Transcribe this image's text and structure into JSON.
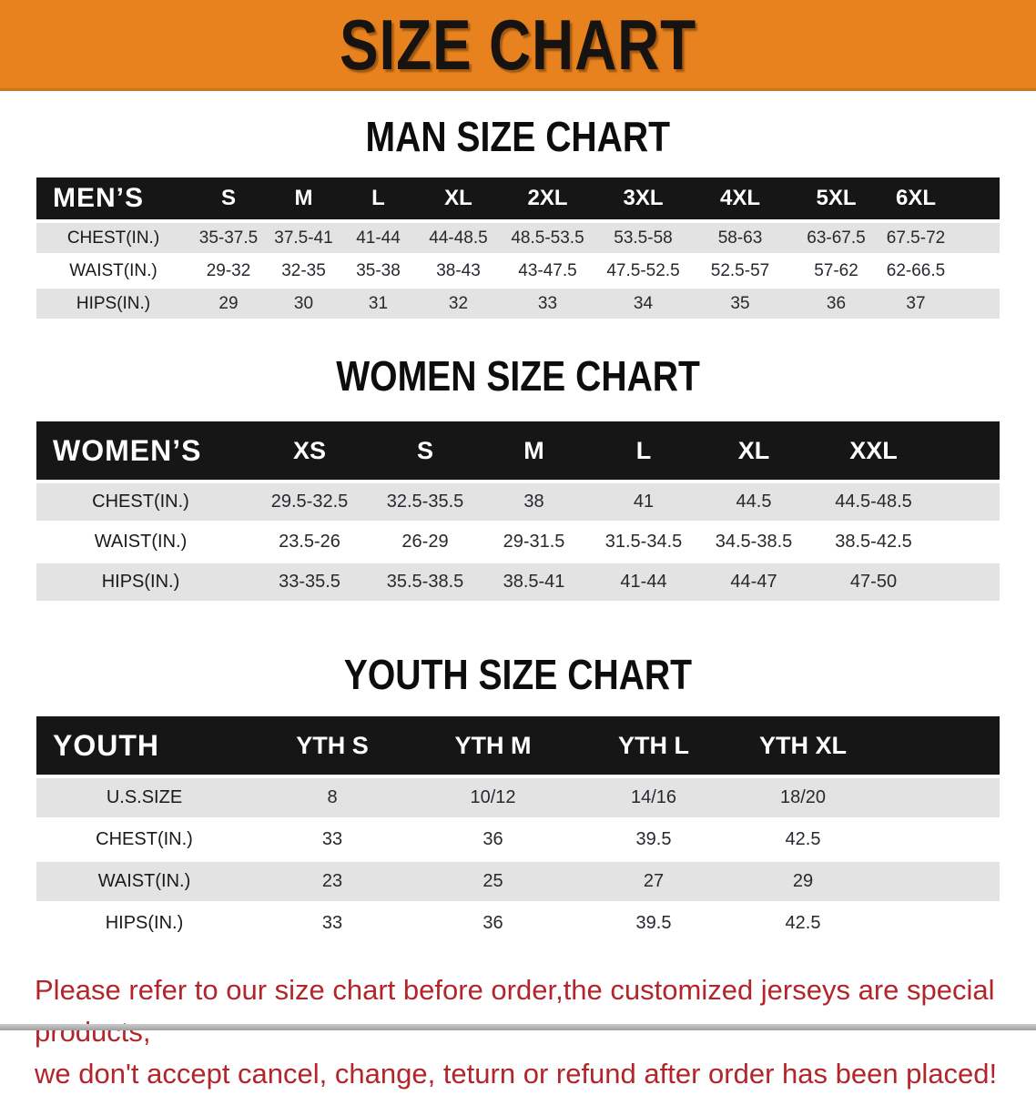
{
  "banner": {
    "title": "SIZE CHART"
  },
  "colors": {
    "banner_orange": "#E8821E",
    "header_bar": "#161616",
    "row_grey": "#E3E3E3",
    "note_red": "#B2262B"
  },
  "sections": {
    "men": {
      "heading": "MAN SIZE CHART",
      "table": {
        "corner_label": "MEN’S",
        "columns": [
          "S",
          "M",
          "L",
          "XL",
          "2XL",
          "3XL",
          "4XL",
          "5XL",
          "6XL"
        ],
        "rows": [
          {
            "label": "CHEST(IN.)",
            "values": [
              "35-37.5",
              "37.5-41",
              "41-44",
              "44-48.5",
              "48.5-53.5",
              "53.5-58",
              "58-63",
              "63-67.5",
              "67.5-72"
            ]
          },
          {
            "label": "WAIST(IN.)",
            "values": [
              "29-32",
              "32-35",
              "35-38",
              "38-43",
              "43-47.5",
              "47.5-52.5",
              "52.5-57",
              "57-62",
              "62-66.5"
            ]
          },
          {
            "label": "HIPS(IN.)",
            "values": [
              "29",
              "30",
              "31",
              "32",
              "33",
              "34",
              "35",
              "36",
              "37"
            ]
          }
        ]
      }
    },
    "women": {
      "heading": "WOMEN SIZE CHART",
      "table": {
        "corner_label": "WOMEN’S",
        "columns": [
          "XS",
          "S",
          "M",
          "L",
          "XL",
          "XXL"
        ],
        "rows": [
          {
            "label": "CHEST(IN.)",
            "values": [
              "29.5-32.5",
              "32.5-35.5",
              "38",
              "41",
              "44.5",
              "44.5-48.5"
            ]
          },
          {
            "label": "WAIST(IN.)",
            "values": [
              "23.5-26",
              "26-29",
              "29-31.5",
              "31.5-34.5",
              "34.5-38.5",
              "38.5-42.5"
            ]
          },
          {
            "label": "HIPS(IN.)",
            "values": [
              "33-35.5",
              "35.5-38.5",
              "38.5-41",
              "41-44",
              "44-47",
              "47-50"
            ]
          }
        ]
      }
    },
    "youth": {
      "heading": "YOUTH SIZE CHART",
      "table": {
        "corner_label": "YOUTH",
        "columns": [
          "YTH S",
          "YTH M",
          "YTH L",
          "YTH XL"
        ],
        "rows": [
          {
            "label": "U.S.SIZE",
            "values": [
              "8",
              "10/12",
              "14/16",
              "18/20"
            ]
          },
          {
            "label": "CHEST(IN.)",
            "values": [
              "33",
              "36",
              "39.5",
              "42.5"
            ]
          },
          {
            "label": "WAIST(IN.)",
            "values": [
              "23",
              "25",
              "27",
              "29"
            ]
          },
          {
            "label": "HIPS(IN.)",
            "values": [
              "33",
              "36",
              "39.5",
              "42.5"
            ]
          }
        ]
      }
    }
  },
  "footer": {
    "line1": "Please refer to our size chart before order,the customized jerseys are special products,",
    "line2": "we don't accept cancel, change, teturn or refund after order has been placed!"
  }
}
